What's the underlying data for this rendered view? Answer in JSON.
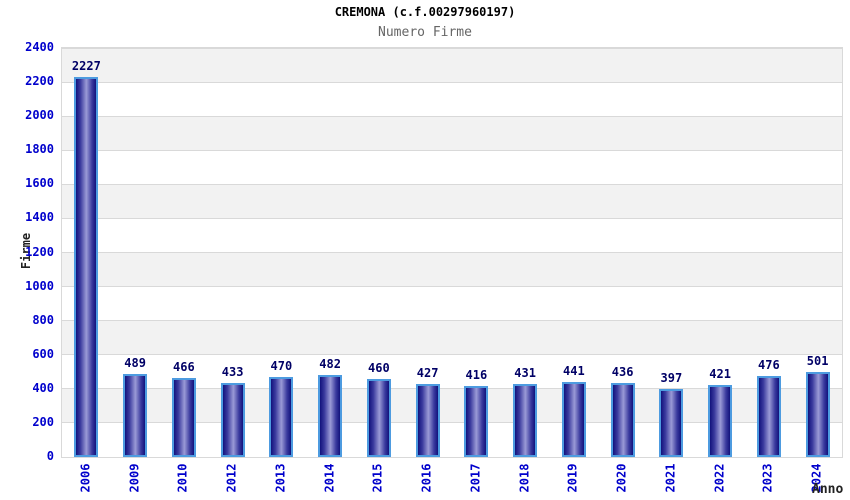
{
  "header": {
    "title": "CREMONA (c.f.00297960197)",
    "subtitle": "Numero Firme"
  },
  "chart_data": {
    "type": "bar",
    "title": "CREMONA (c.f.00297960197)",
    "subtitle": "Numero Firme",
    "xlabel": "Anno",
    "ylabel": "Firme",
    "categories": [
      "2006",
      "2009",
      "2010",
      "2012",
      "2013",
      "2014",
      "2015",
      "2016",
      "2017",
      "2018",
      "2019",
      "2020",
      "2021",
      "2022",
      "2023",
      "2024"
    ],
    "values": [
      2227,
      489,
      466,
      433,
      470,
      482,
      460,
      427,
      416,
      431,
      441,
      436,
      397,
      421,
      476,
      501
    ],
    "ylim": [
      0,
      2400
    ],
    "ytick_step": 200,
    "yticks": [
      0,
      200,
      400,
      600,
      800,
      1000,
      1200,
      1400,
      1600,
      1800,
      2000,
      2200,
      2400
    ],
    "grid": "horizontal",
    "legend": "none",
    "value_labels_shown": true,
    "colors": {
      "axis_tick_label": "#0000cc",
      "value_label": "#000066",
      "title": "#000000",
      "subtitle": "#666666",
      "axis_title": "#222222",
      "band_gray": "#f2f2f2",
      "band_white": "#ffffff",
      "grid_line": "#d9d9d9",
      "bar_border": "#4d9be0",
      "bar_edge_dark": "#12127c",
      "bar_mid": "#3a3a9e",
      "bar_highlight": "#9a9ad6"
    }
  }
}
